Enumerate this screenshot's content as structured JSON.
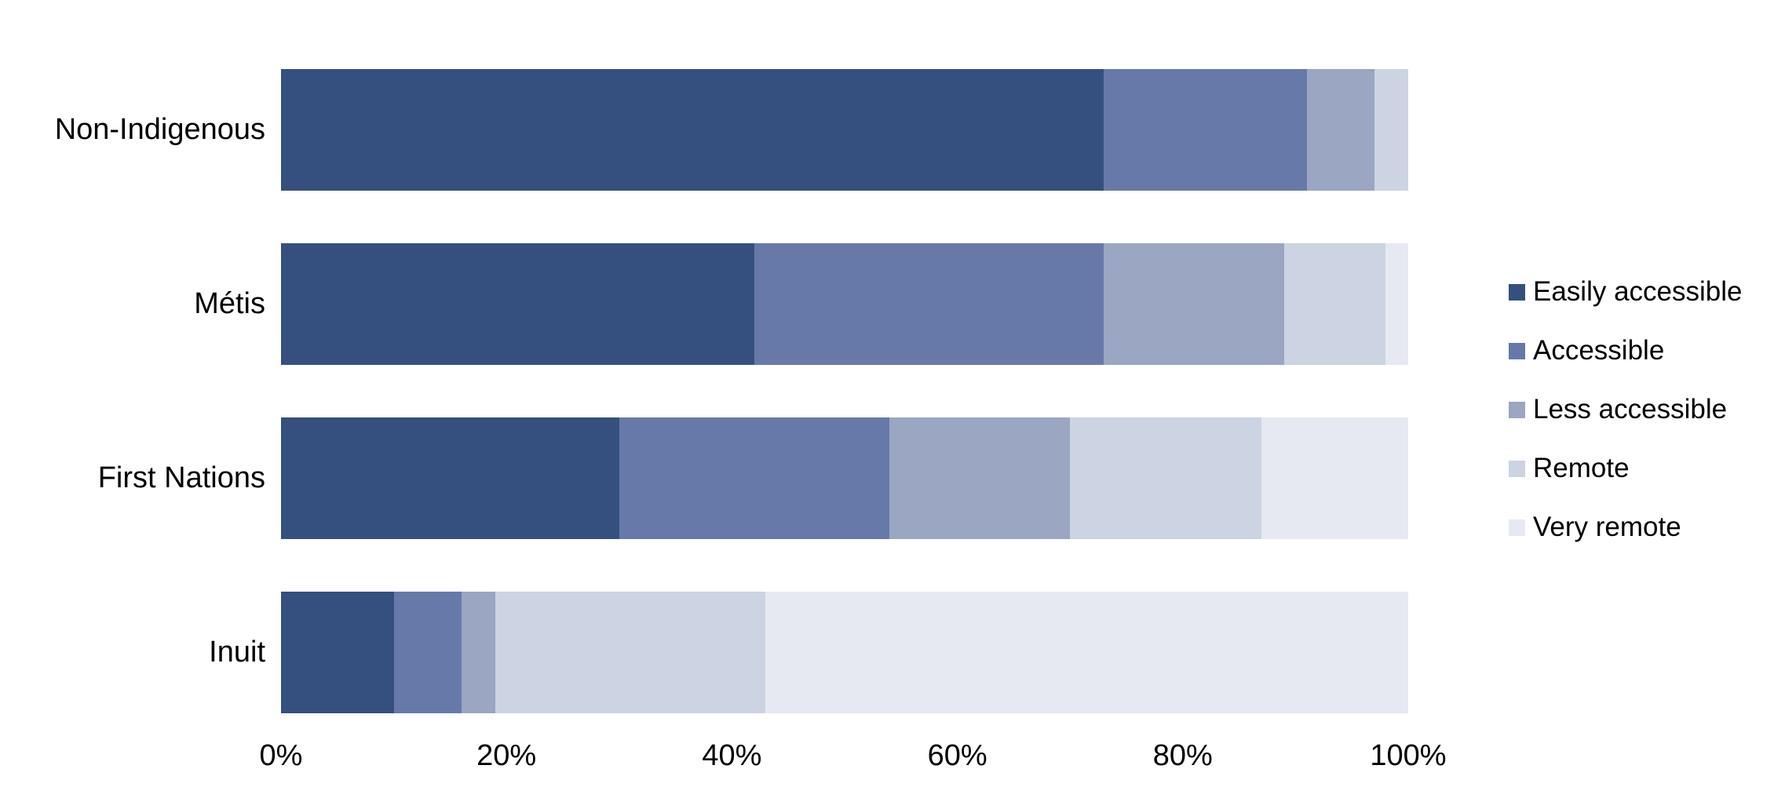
{
  "chart_data": {
    "type": "bar",
    "orientation": "horizontal",
    "stacked": true,
    "unit": "percent",
    "title": "",
    "xlabel": "",
    "ylabel": "",
    "grid": false,
    "categories": [
      "Non-Indigenous",
      "Métis",
      "First Nations",
      "Inuit"
    ],
    "series": [
      {
        "name": "Easily accessible",
        "color": "#35507E",
        "values": [
          73,
          42,
          30,
          10
        ]
      },
      {
        "name": "Accessible",
        "color": "#6779A8",
        "values": [
          18,
          31,
          24,
          6
        ]
      },
      {
        "name": "Less accessible",
        "color": "#9AA6C2",
        "values": [
          6,
          16,
          16,
          3
        ]
      },
      {
        "name": "Remote",
        "color": "#CCD3E2",
        "values": [
          3,
          9,
          17,
          24
        ]
      },
      {
        "name": "Very remote",
        "color": "#E6E9F1",
        "values": [
          0,
          2,
          13,
          57
        ]
      }
    ],
    "x_axis": {
      "min": 0,
      "max": 100,
      "ticks": [
        "0%",
        "20%",
        "40%",
        "60%",
        "80%",
        "100%"
      ],
      "tick_values": [
        0,
        20,
        40,
        60,
        80,
        100
      ]
    },
    "legend": {
      "position": "right",
      "entries": [
        "Easily accessible",
        "Accessible",
        "Less accessible",
        "Remote",
        "Very remote"
      ]
    }
  }
}
